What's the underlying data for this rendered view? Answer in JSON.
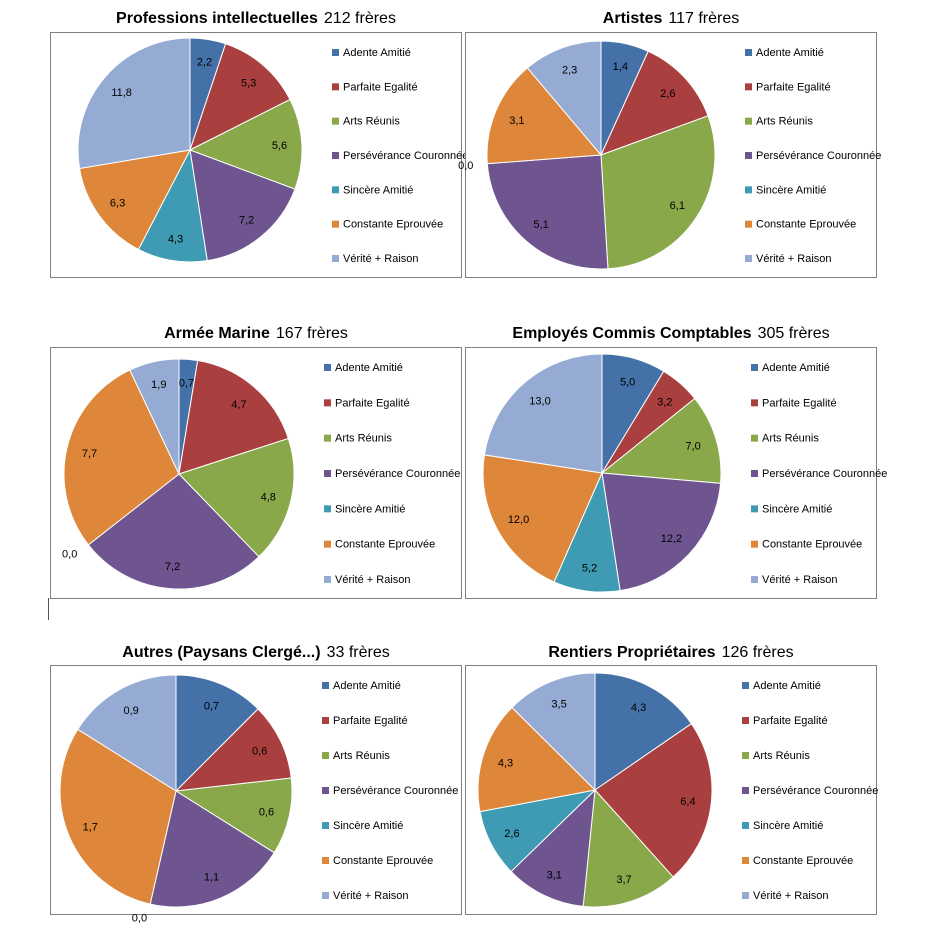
{
  "legend_colors": [
    "#4472a8",
    "#a9403f",
    "#88a84a",
    "#6f5590",
    "#3f9bb4",
    "#de8639",
    "#95abd4"
  ],
  "chart_data": [
    {
      "type": "pie",
      "title": "Professions intellectuelles",
      "count_label": "212 frères",
      "categories": [
        "Adente Amitié",
        "Parfaite Egalité",
        "Arts Réunis",
        "Persévérance Couronnée",
        "Sincère Amitié",
        "Constante Eprouvée",
        "Vérité + Raison"
      ],
      "values": [
        2.2,
        5.3,
        5.6,
        7.2,
        4.3,
        6.3,
        11.8
      ],
      "labels": [
        "2,2",
        "5,3",
        "5,6",
        "7,2",
        "4,3",
        "6,3",
        "11,8"
      ]
    },
    {
      "type": "pie",
      "title": "Artistes",
      "count_label": "117 frères",
      "categories": [
        "Adente Amitié",
        "Parfaite Egalité",
        "Arts Réunis",
        "Persévérance Couronnée",
        "Sincère Amitié",
        "Constante Eprouvée",
        "Vérité + Raison"
      ],
      "values": [
        1.4,
        2.6,
        6.1,
        5.1,
        0.0,
        3.1,
        2.3
      ],
      "labels": [
        "1,4",
        "2,6",
        "6,1",
        "5,1",
        "0,0",
        "3,1",
        "2,3"
      ]
    },
    {
      "type": "pie",
      "title": "Armée Marine",
      "count_label": "167 frères",
      "categories": [
        "Adente Amitié",
        "Parfaite Egalité",
        "Arts Réunis",
        "Persévérance Couronnée",
        "Sincère Amitié",
        "Constante Eprouvée",
        "Vérité + Raison"
      ],
      "values": [
        0.7,
        4.7,
        4.8,
        7.2,
        0.0,
        7.7,
        1.9
      ],
      "labels": [
        "0,7",
        "4,7",
        "4,8",
        "7,2",
        "0,0",
        "7,7",
        "1,9"
      ]
    },
    {
      "type": "pie",
      "title": "Employés Commis Comptables",
      "count_label": "305 frères",
      "categories": [
        "Adente Amitié",
        "Parfaite Egalité",
        "Arts Réunis",
        "Persévérance Couronnée",
        "Sincère Amitié",
        "Constante Eprouvée",
        "Vérité + Raison"
      ],
      "values": [
        5.0,
        3.2,
        7.0,
        12.2,
        5.2,
        12.0,
        13.0
      ],
      "labels": [
        "5,0",
        "3,2",
        "7,0",
        "12,2",
        "5,2",
        "12,0",
        "13,0"
      ]
    },
    {
      "type": "pie",
      "title": "Autres (Paysans Clergé...)",
      "count_label": "33 frères",
      "categories": [
        "Adente Amitié",
        "Parfaite Egalité",
        "Arts Réunis",
        "Persévérance Couronnée",
        "Sincère Amitié",
        "Constante Eprouvée",
        "Vérité + Raison"
      ],
      "values": [
        0.7,
        0.6,
        0.6,
        1.1,
        0.0,
        1.7,
        0.9
      ],
      "labels": [
        "0,7",
        "0,6",
        "0,6",
        "1,1",
        "0,0",
        "1,7",
        "0,9"
      ]
    },
    {
      "type": "pie",
      "title": "Rentiers Propriétaires",
      "count_label": "126 frères",
      "categories": [
        "Adente Amitié",
        "Parfaite Egalité",
        "Arts Réunis",
        "Persévérance Couronnée",
        "Sincère Amitié",
        "Constante Eprouvée",
        "Vérité + Raison"
      ],
      "values": [
        4.3,
        6.4,
        3.7,
        3.1,
        2.6,
        4.3,
        3.5
      ],
      "labels": [
        "4,3",
        "6,4",
        "3,7",
        "3,1",
        "2,6",
        "4,3",
        "3,5"
      ]
    }
  ]
}
